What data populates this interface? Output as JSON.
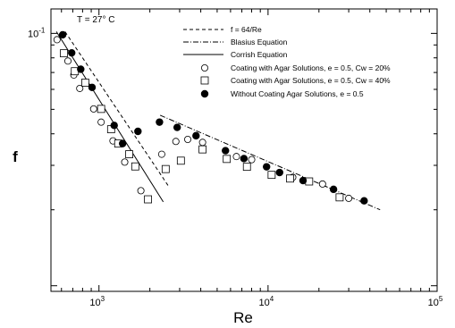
{
  "chart_data": {
    "type": "scatter",
    "annotation": "T = 27° C",
    "xlabel": "Re",
    "ylabel": "f",
    "x_scale": "log",
    "y_scale": "log",
    "xlim": [
      520,
      100000
    ],
    "ylim": [
      0.0095,
      0.125
    ],
    "x_ticks": [
      {
        "value": 1000,
        "base": "10",
        "exp": "3"
      },
      {
        "value": 10000,
        "base": "10",
        "exp": "4"
      },
      {
        "value": 100000,
        "base": "10",
        "exp": "5"
      }
    ],
    "y_ticks": [
      {
        "value": 0.1,
        "base": "10",
        "exp": "-1"
      }
    ],
    "grid": false,
    "legend_position": "top-right",
    "lines": [
      {
        "name": "f = 64/Re",
        "style": "dashed",
        "x": [
          630,
          2600
        ],
        "y": [
          0.1016,
          0.0246
        ]
      },
      {
        "name": "Blasius Equation",
        "style": "dashdot",
        "x": [
          2300,
          46000
        ],
        "y": [
          0.0474,
          0.02
        ]
      },
      {
        "name": "Corrish Equation",
        "style": "solid",
        "x": [
          560,
          2400
        ],
        "y": [
          0.1016,
          0.0215
        ]
      }
    ],
    "series": [
      {
        "name": "Coating with Agar Solutions, e = 0.5, Cw = 20%",
        "marker": "open-circle",
        "x": [
          565,
          655,
          710,
          770,
          930,
          1030,
          1210,
          1420,
          1770,
          2350,
          2850,
          3350,
          4100,
          6500,
          8000,
          14000,
          21000,
          30000
        ],
        "y": [
          0.0944,
          0.0777,
          0.0684,
          0.0605,
          0.0502,
          0.0445,
          0.0375,
          0.0309,
          0.0238,
          0.0332,
          0.0373,
          0.038,
          0.037,
          0.0325,
          0.0316,
          0.0269,
          0.0253,
          0.0222
        ]
      },
      {
        "name": "Coating with Agar Solutions, e = 0.5, Cw = 40%",
        "marker": "open-square",
        "x": [
          620,
          720,
          830,
          1030,
          1180,
          1300,
          1510,
          1640,
          1950,
          2480,
          3050,
          4100,
          5700,
          7500,
          10500,
          13500,
          17500,
          26500
        ],
        "y": [
          0.0834,
          0.0708,
          0.0638,
          0.0502,
          0.0417,
          0.0366,
          0.0332,
          0.0297,
          0.022,
          0.029,
          0.0313,
          0.0347,
          0.0318,
          0.0296,
          0.0275,
          0.0266,
          0.0259,
          0.0224
        ]
      },
      {
        "name": "Without Coating Agar Solutions, e = 0.5",
        "marker": "filled-circle",
        "x": [
          610,
          690,
          780,
          910,
          1230,
          1380,
          1700,
          2280,
          2900,
          3750,
          5600,
          7200,
          9800,
          11700,
          16100,
          24400,
          37000
        ],
        "y": [
          0.0987,
          0.0837,
          0.0721,
          0.0611,
          0.0432,
          0.0366,
          0.0409,
          0.0445,
          0.0424,
          0.0393,
          0.0343,
          0.0319,
          0.0296,
          0.0281,
          0.0261,
          0.0241,
          0.0217
        ]
      }
    ]
  }
}
